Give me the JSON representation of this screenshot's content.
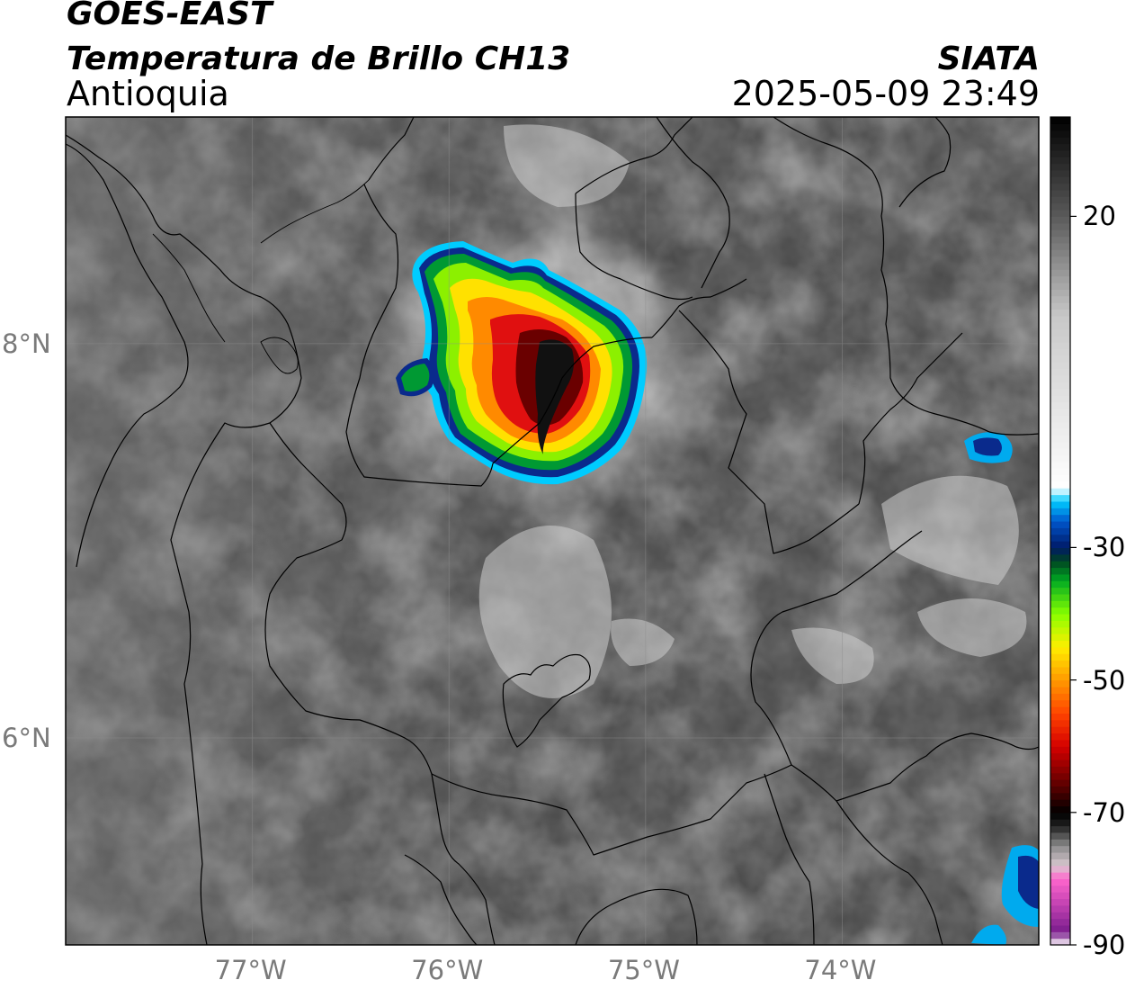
{
  "header": {
    "title_line1": "GOES-EAST",
    "title_line2": "Temperatura de Brillo CH13",
    "subtitle": "Antioquia",
    "brand": "SIATA",
    "datetime": "2025-05-09 23:49"
  },
  "map": {
    "lon_range": [
      -77.95,
      -73.0
    ],
    "lat_range": [
      4.95,
      9.15
    ],
    "lon_ticks": [
      {
        "value": -77,
        "label": "77°W"
      },
      {
        "value": -76,
        "label": "76°W"
      },
      {
        "value": -75,
        "label": "75°W"
      },
      {
        "value": -74,
        "label": "74°W"
      }
    ],
    "lat_ticks": [
      {
        "value": 8,
        "label": "8°N"
      },
      {
        "value": 6,
        "label": "6°N"
      }
    ],
    "gridlines": true,
    "storm_center": {
      "lon": -75.55,
      "lat": 7.95
    },
    "colors": {
      "background_gray": "#6e6e6e",
      "boundary": "#000000"
    }
  },
  "colorbar": {
    "range": [
      -90,
      35
    ],
    "ticks": [
      {
        "value": 20,
        "label": "20"
      },
      {
        "value": -30,
        "label": "-30"
      },
      {
        "value": -50,
        "label": "-50"
      },
      {
        "value": -70,
        "label": "-70"
      },
      {
        "value": -90,
        "label": "-90"
      }
    ],
    "stops": [
      {
        "t": -90,
        "color": "#ffffff"
      },
      {
        "t": -88,
        "color": "#7a1c8c"
      },
      {
        "t": -84,
        "color": "#c040b0"
      },
      {
        "t": -80,
        "color": "#ff66cc"
      },
      {
        "t": -78,
        "color": "#d8c8d0"
      },
      {
        "t": -75,
        "color": "#8a8a8a"
      },
      {
        "t": -72,
        "color": "#202020"
      },
      {
        "t": -70,
        "color": "#000000"
      },
      {
        "t": -66,
        "color": "#5a0000"
      },
      {
        "t": -60,
        "color": "#d40000"
      },
      {
        "t": -55,
        "color": "#ff4400"
      },
      {
        "t": -50,
        "color": "#ff9900"
      },
      {
        "t": -45,
        "color": "#ffee00"
      },
      {
        "t": -40,
        "color": "#88ff00"
      },
      {
        "t": -35,
        "color": "#00aa22"
      },
      {
        "t": -32,
        "color": "#004422"
      },
      {
        "t": -30,
        "color": "#001a66"
      },
      {
        "t": -26,
        "color": "#0055cc"
      },
      {
        "t": -23,
        "color": "#00ccff"
      },
      {
        "t": -21,
        "color": "#ffffff"
      },
      {
        "t": 5,
        "color": "#c8c8c8"
      },
      {
        "t": 20,
        "color": "#5a5a5a"
      },
      {
        "t": 35,
        "color": "#000000"
      }
    ]
  }
}
